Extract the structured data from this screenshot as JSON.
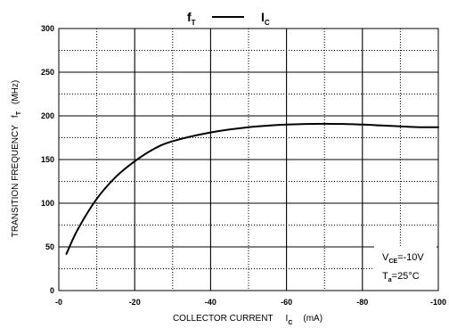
{
  "chart_data": {
    "type": "line",
    "title": {
      "left_symbol": "f",
      "left_subscript": "T",
      "right_symbol": "I",
      "right_subscript": "C"
    },
    "ylabel": {
      "text": "TRANSITION FREQUENCY",
      "symbol": "f",
      "subscript": "T",
      "unit": "(MHz)"
    },
    "xlabel": {
      "text": "COLLECTOR CURRENT",
      "symbol": "I",
      "subscript": "C",
      "unit": "(mA)"
    },
    "xlim": [
      0,
      -100
    ],
    "ylim": [
      0,
      300
    ],
    "x_ticks": [
      0,
      -20,
      -40,
      -60,
      -80,
      -100
    ],
    "x_tick_labels": [
      "-0",
      "-20",
      "-40",
      "-60",
      "-80",
      "-100"
    ],
    "y_ticks": [
      0,
      50,
      100,
      150,
      200,
      250,
      300
    ],
    "y_tick_labels": [
      "0",
      "50",
      "100",
      "150",
      "200",
      "250",
      "300"
    ],
    "grid": {
      "major": true,
      "minor": "dotted"
    },
    "conditions": [
      {
        "symbol": "V",
        "subscript": "CE",
        "value": "=-10V"
      },
      {
        "symbol": "T",
        "subscript": "a",
        "value": "=25",
        "suffix": "°C"
      }
    ],
    "series": [
      {
        "x": [
          -2,
          -5,
          -10,
          -15,
          -20,
          -25,
          -30,
          -40,
          -50,
          -60,
          -70,
          -80,
          -85,
          -90,
          -95,
          -100
        ],
        "y": [
          42,
          70,
          105,
          130,
          148,
          162,
          171,
          181,
          187,
          190,
          191,
          190,
          189,
          188,
          187,
          187
        ]
      }
    ]
  }
}
